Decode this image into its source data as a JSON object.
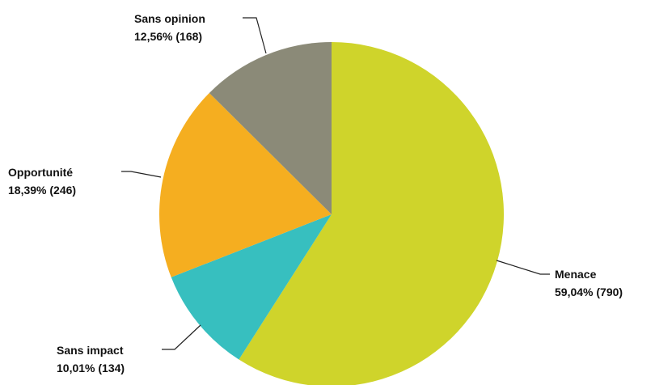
{
  "chart_data": {
    "type": "pie",
    "start_angle_deg": 0,
    "direction": "clockwise",
    "slices": [
      {
        "label": "Menace",
        "value_text": "59,04% (790)",
        "percent": 59.04,
        "count": 790,
        "color": "#cfd42b"
      },
      {
        "label": "Sans impact",
        "value_text": "10,01% (134)",
        "percent": 10.01,
        "count": 134,
        "color": "#37bfbf"
      },
      {
        "label": "Opportunité",
        "value_text": "18,39% (246)",
        "percent": 18.39,
        "count": 246,
        "color": "#f5ae20"
      },
      {
        "label": "Sans opinion",
        "value_text": "12,56% (168)",
        "percent": 12.56,
        "count": 168,
        "color": "#8b8a78"
      }
    ]
  }
}
